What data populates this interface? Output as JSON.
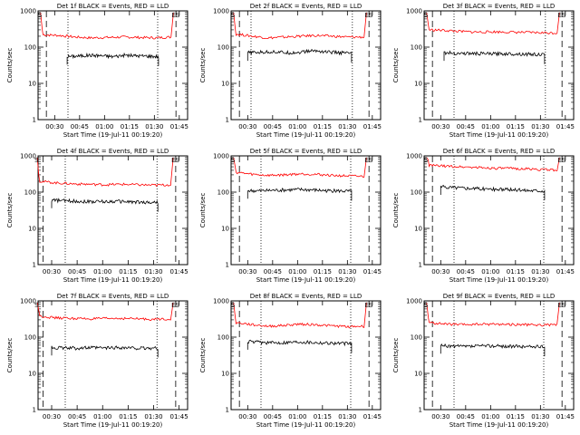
{
  "colors": {
    "events": "#000000",
    "lld": "#ff0000",
    "axes": "#000000"
  },
  "common": {
    "xlabel": "Start Time (19-Jul-11 00:19:20)",
    "ylabel": "Counts/sec",
    "ytick_labels": [
      "1",
      "10",
      "100",
      "1000"
    ],
    "marker_left": "S",
    "marker_right": "ES"
  },
  "chart_data": [
    {
      "type": "line",
      "title": "Det 1f BLACK = Events, RED = LLD",
      "xtick_labels": [
        "00:30",
        "00:45",
        "01:00",
        "01:15",
        "01:30",
        "01:45"
      ],
      "xlim_min": [
        20,
        110
      ],
      "ylim": [
        1,
        1000
      ],
      "yscale": "log",
      "events_span_min": [
        37.5,
        92.5
      ],
      "dashed_lines_min": [
        25,
        103
      ],
      "dotted_lines_min": [
        38,
        92
      ],
      "series": [
        {
          "values": [
            55,
            57,
            60,
            58,
            55,
            60,
            58,
            57,
            55
          ]
        },
        {
          "values": [
            220,
            210,
            190,
            180,
            185,
            190,
            185,
            180,
            190
          ]
        }
      ]
    },
    {
      "type": "line",
      "title": "Det 2f BLACK = Events, RED = LLD",
      "xtick_labels": [
        "00:30",
        "00:45",
        "01:00",
        "01:15",
        "01:30",
        "01:45"
      ],
      "xlim_min": [
        20,
        110
      ],
      "ylim": [
        1,
        1000
      ],
      "yscale": "log",
      "events_span_min": [
        30,
        92.5
      ],
      "dashed_lines_min": [
        25,
        103
      ],
      "dotted_lines_min": [
        32,
        93
      ],
      "series": [
        {
          "values": [
            70,
            72,
            75,
            70,
            72,
            80,
            75,
            70,
            68
          ]
        },
        {
          "values": [
            230,
            200,
            180,
            190,
            200,
            210,
            200,
            190,
            190
          ]
        }
      ]
    },
    {
      "type": "line",
      "title": "Det 3f BLACK = Events, RED = LLD",
      "xtick_labels": [
        "00:30",
        "00:45",
        "01:00",
        "01:15",
        "01:30",
        "01:45"
      ],
      "xlim_min": [
        20,
        110
      ],
      "ylim": [
        1,
        1000
      ],
      "yscale": "log",
      "events_span_min": [
        32,
        92.5
      ],
      "dashed_lines_min": [
        25,
        103
      ],
      "dotted_lines_min": [
        38,
        93
      ],
      "series": [
        {
          "values": [
            70,
            68,
            67,
            66,
            65,
            66,
            65,
            64,
            62
          ]
        },
        {
          "values": [
            300,
            290,
            270,
            260,
            265,
            260,
            255,
            250,
            245
          ]
        }
      ]
    },
    {
      "type": "line",
      "title": "Det 4f BLACK = Events, RED = LLD",
      "xtick_labels": [
        "00:30",
        "00:45",
        "01:00",
        "01:15",
        "01:30",
        "01:45"
      ],
      "xlim_min": [
        22,
        110
      ],
      "ylim": [
        1,
        1000
      ],
      "yscale": "log",
      "events_span_min": [
        30,
        92.5
      ],
      "dashed_lines_min": [
        25,
        103
      ],
      "dotted_lines_min": [
        38,
        92
      ],
      "series": [
        {
          "values": [
            60,
            58,
            56,
            55,
            55,
            56,
            54,
            52,
            52
          ]
        },
        {
          "values": [
            200,
            180,
            170,
            165,
            160,
            165,
            160,
            155,
            160
          ]
        }
      ]
    },
    {
      "type": "line",
      "title": "Det 5f BLACK = Events, RED = LLD",
      "xtick_labels": [
        "00:30",
        "00:45",
        "01:00",
        "01:15",
        "01:30",
        "01:45"
      ],
      "xlim_min": [
        20,
        110
      ],
      "ylim": [
        1,
        1000
      ],
      "yscale": "log",
      "events_span_min": [
        30,
        92.5
      ],
      "dashed_lines_min": [
        25,
        103
      ],
      "dotted_lines_min": [
        38,
        92
      ],
      "series": [
        {
          "values": [
            110,
            108,
            112,
            115,
            118,
            115,
            110,
            108,
            105
          ]
        },
        {
          "values": [
            350,
            310,
            290,
            300,
            320,
            310,
            290,
            280,
            270
          ]
        }
      ]
    },
    {
      "type": "line",
      "title": "Det 6f BLACK = Events, RED = LLD",
      "xtick_labels": [
        "00:30",
        "00:45",
        "01:00",
        "01:15",
        "01:30",
        "01:45"
      ],
      "xlim_min": [
        20,
        110
      ],
      "ylim": [
        1,
        1000
      ],
      "yscale": "log",
      "events_span_min": [
        30,
        92.5
      ],
      "dashed_lines_min": [
        25,
        103
      ],
      "dotted_lines_min": [
        38,
        92
      ],
      "series": [
        {
          "values": [
            140,
            135,
            130,
            125,
            120,
            118,
            115,
            112,
            110
          ]
        },
        {
          "values": [
            550,
            520,
            500,
            480,
            460,
            450,
            440,
            420,
            410
          ]
        }
      ]
    },
    {
      "type": "line",
      "title": "Det 7f BLACK = Events, RED = LLD",
      "xtick_labels": [
        "00:30",
        "00:45",
        "01:00",
        "01:15",
        "01:30",
        "01:45"
      ],
      "xlim_min": [
        22,
        110
      ],
      "ylim": [
        1,
        1000
      ],
      "yscale": "log",
      "events_span_min": [
        30,
        92.5
      ],
      "dashed_lines_min": [
        25,
        103
      ],
      "dotted_lines_min": [
        38,
        92
      ],
      "series": [
        {
          "values": [
            52,
            50,
            50,
            51,
            50,
            52,
            50,
            49,
            50
          ]
        },
        {
          "values": [
            380,
            340,
            330,
            320,
            325,
            330,
            320,
            310,
            320
          ]
        }
      ]
    },
    {
      "type": "line",
      "title": "Det 8f BLACK = Events, RED = LLD",
      "xtick_labels": [
        "00:30",
        "00:45",
        "01:00",
        "01:15",
        "01:30",
        "01:45"
      ],
      "xlim_min": [
        20,
        110
      ],
      "ylim": [
        1,
        1000
      ],
      "yscale": "log",
      "events_span_min": [
        30,
        92.5
      ],
      "dashed_lines_min": [
        25,
        103
      ],
      "dotted_lines_min": [
        38,
        92
      ],
      "series": [
        {
          "values": [
            75,
            72,
            70,
            72,
            75,
            72,
            70,
            68,
            66
          ]
        },
        {
          "values": [
            250,
            220,
            200,
            210,
            230,
            220,
            205,
            195,
            200
          ]
        }
      ]
    },
    {
      "type": "line",
      "title": "Det 9f BLACK = Events, RED = LLD",
      "xtick_labels": [
        "00:30",
        "00:45",
        "01:00",
        "01:15",
        "01:30",
        "01:45"
      ],
      "xlim_min": [
        20,
        110
      ],
      "ylim": [
        1,
        1000
      ],
      "yscale": "log",
      "events_span_min": [
        30,
        92.5
      ],
      "dashed_lines_min": [
        25,
        103
      ],
      "dotted_lines_min": [
        38,
        92
      ],
      "series": [
        {
          "values": [
            58,
            56,
            55,
            57,
            58,
            56,
            55,
            55,
            54
          ]
        },
        {
          "values": [
            250,
            230,
            220,
            225,
            230,
            225,
            220,
            215,
            220
          ]
        }
      ]
    }
  ]
}
